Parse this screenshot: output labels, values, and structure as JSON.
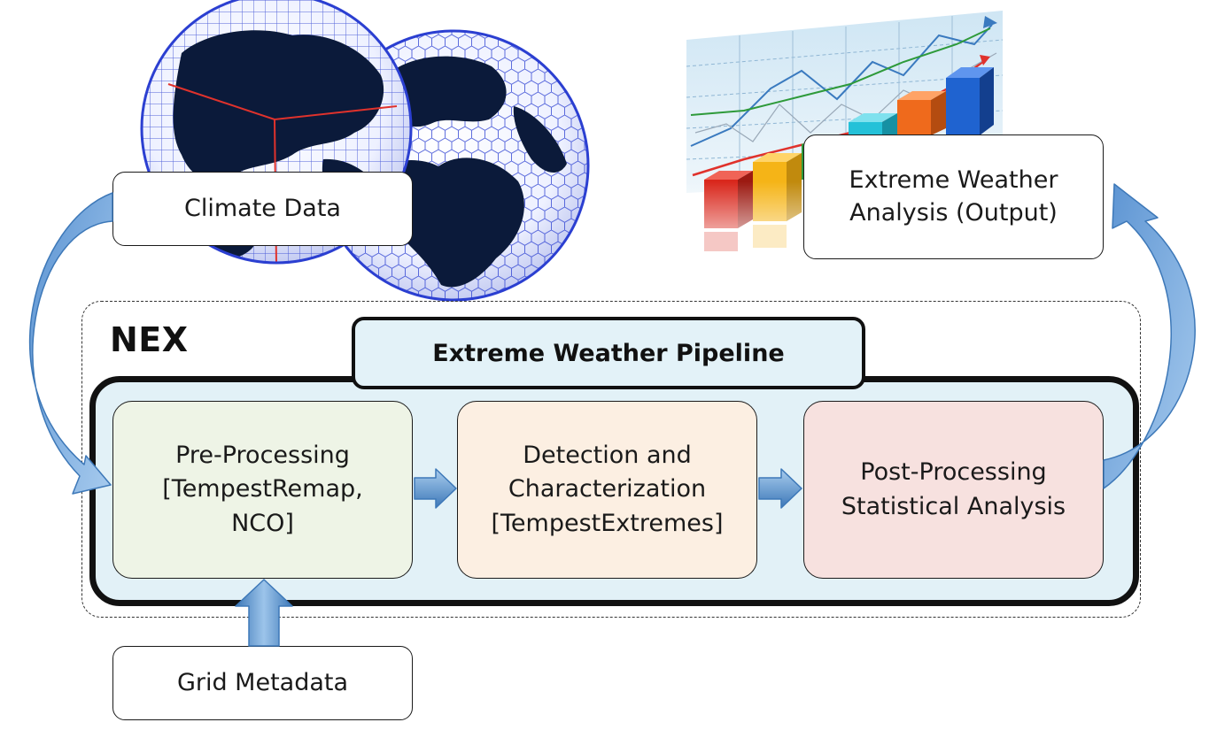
{
  "inputs": {
    "climate_data": "Climate Data",
    "grid_metadata": "Grid Metadata"
  },
  "output": {
    "label": "Extreme Weather\nAnalysis (Output)"
  },
  "platform": {
    "label": "NEX"
  },
  "pipeline": {
    "title": "Extreme Weather Pipeline",
    "stages": [
      {
        "label": "Pre-Processing\n[TempestRemap,\nNCO]",
        "fill": "#eef4e6"
      },
      {
        "label": "Detection and\nCharacterization\n[TempestExtremes]",
        "fill": "#fcefe2"
      },
      {
        "label": "Post-Processing\nStatistical Analysis",
        "fill": "#f7e1df"
      }
    ]
  },
  "colors": {
    "arrow_fill": "#6fa8dc",
    "arrow_dark": "#3d78b8",
    "globe_grid": "#2b3fd1",
    "land": "#0b1a3a",
    "bar_colors": [
      "#d9271c",
      "#f5b417",
      "#2e9a3a",
      "#24c1d8",
      "#ef6a1c",
      "#1f63d0"
    ]
  },
  "icons": {
    "globes": "cubed-sphere-and-hexagonal-grid-globes",
    "chart": "3d-bar-and-trend-line-chart"
  }
}
